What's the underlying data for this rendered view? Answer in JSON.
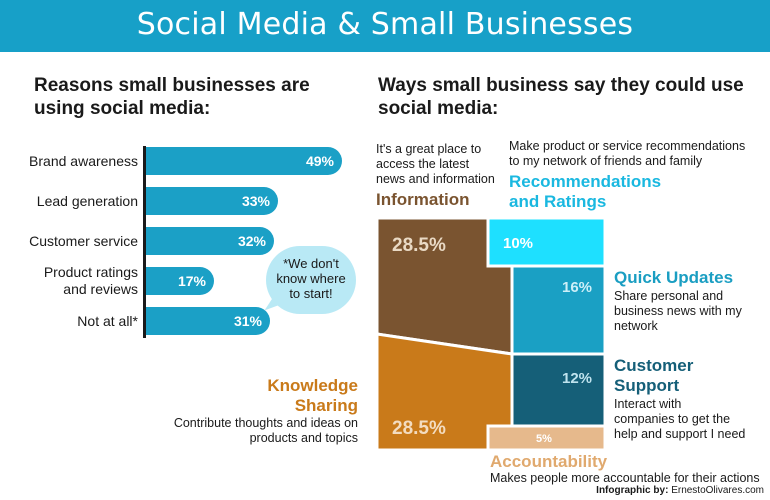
{
  "banner": {
    "title": "Social Media & Small Businesses",
    "color": "#17a0c8"
  },
  "left_heading": {
    "line1": "Reasons small businesses are",
    "line2": "using social media:"
  },
  "right_heading": {
    "line1": "Ways small business say they could use",
    "line2": "social media:"
  },
  "bubble": {
    "line1": "*We don't",
    "line2": "know where",
    "line3": "to start!"
  },
  "colors": {
    "bars": "#1ba0c6",
    "information": "#7a5430",
    "knowledge": "#c97a1a",
    "recommendations": "#1ee0ff",
    "quick_updates": "#1aa0c4",
    "customer_support": "#155f78",
    "accountability": "#e6b98c"
  },
  "chart_data": [
    {
      "type": "bar",
      "orientation": "horizontal",
      "title": "Reasons small businesses are using social media:",
      "categories": [
        "Brand awareness",
        "Lead generation",
        "Customer service",
        "Product ratings and reviews",
        "Not at all*"
      ],
      "category_lines": [
        [
          "Brand awareness"
        ],
        [
          "Lead generation"
        ],
        [
          "Customer service"
        ],
        [
          "Product ratings",
          "and reviews"
        ],
        [
          "Not at all*"
        ]
      ],
      "values": [
        49,
        33,
        32,
        17,
        31
      ],
      "value_labels": [
        "49%",
        "33%",
        "32%",
        "17%",
        "31%"
      ],
      "unit": "%",
      "xlim": [
        0,
        49
      ]
    },
    {
      "type": "treemap",
      "title": "Ways small business say they could use social media:",
      "segments": [
        {
          "name": "Information",
          "value": 28.5,
          "label": "28.5%",
          "desc": [
            "It's a great place to",
            "access the latest",
            "news and information"
          ]
        },
        {
          "name": "Knowledge Sharing",
          "name_lines": [
            "Knowledge",
            "Sharing"
          ],
          "value": 28.5,
          "label": "28.5%",
          "desc": [
            "Contribute thoughts and ideas on",
            "products and topics"
          ]
        },
        {
          "name": "Recommendations and Ratings",
          "name_lines": [
            "Recommendations",
            "and Ratings"
          ],
          "value": 10,
          "label": "10%",
          "desc": [
            "Make product or service recommendations",
            "to my network of friends and family"
          ]
        },
        {
          "name": "Quick Updates",
          "value": 16,
          "label": "16%",
          "desc": [
            "Share personal and",
            "business news with my",
            "network"
          ]
        },
        {
          "name": "Customer Support",
          "name_lines": [
            "Customer",
            "Support"
          ],
          "value": 12,
          "label": "12%",
          "desc": [
            "Interact with",
            "companies to get the",
            "help and support I need"
          ]
        },
        {
          "name": "Accountability",
          "value": 5,
          "label": "5%",
          "desc": [
            "Makes people more accountable for their actions"
          ]
        }
      ]
    }
  ],
  "credit": {
    "prefix": "Infographic by:",
    "name": "ErnestoOlivares.com"
  }
}
